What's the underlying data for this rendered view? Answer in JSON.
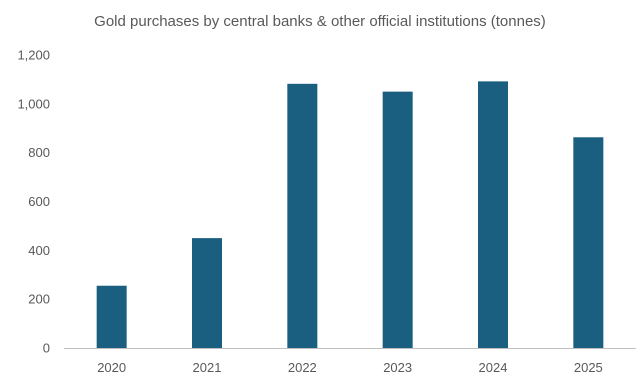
{
  "chart_data": {
    "type": "bar",
    "title": "Gold purchases by central banks & other official institutions (tonnes)",
    "xlabel": "",
    "ylabel": "",
    "categories": [
      "2020",
      "2021",
      "2022",
      "2023",
      "2024",
      "2025"
    ],
    "series": [
      {
        "values": [
          255,
          450,
          1082,
          1050,
          1092,
          863
        ]
      }
    ],
    "ylim": [
      0,
      1200
    ],
    "yticks": [
      0,
      200,
      400,
      600,
      800,
      1000,
      1200
    ],
    "ytick_labels": [
      "0",
      "200",
      "400",
      "600",
      "800",
      "1,000",
      "1,200"
    ],
    "grid": false,
    "legend": "none",
    "colors": {
      "bar": "#1a5e80",
      "axis": "#bfbfbf",
      "text": "#595959"
    }
  }
}
